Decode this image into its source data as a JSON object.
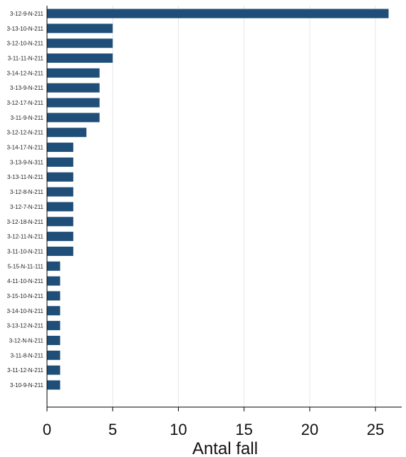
{
  "chart_data": {
    "type": "bar",
    "orientation": "horizontal",
    "categories": [
      "3-12-9-N-211",
      "3-13-10-N-211",
      "3-12-10-N-211",
      "3-11-11-N-211",
      "3-14-12-N-211",
      "3-13-9-N-211",
      "3-12-17-N-211",
      "3-11-9-N-211",
      "3-12-12-N-211",
      "3-14-17-N-211",
      "3-13-9-N-311",
      "3-13-11-N-211",
      "3-12-8-N-211",
      "3-12-7-N-211",
      "3-12-18-N-211",
      "3-12-11-N-211",
      "3-11-10-N-211",
      "5-15-N-11-111",
      "4-11-10-N-211",
      "3-15-10-N-211",
      "3-14-10-N-211",
      "3-13-12-N-211",
      "3-12-N-N-211",
      "3-11-8-N-211",
      "3-11-12-N-211",
      "3-10-9-N-211"
    ],
    "values": [
      26,
      5,
      5,
      5,
      4,
      4,
      4,
      4,
      3,
      2,
      2,
      2,
      2,
      2,
      2,
      2,
      2,
      1,
      1,
      1,
      1,
      1,
      1,
      1,
      1,
      1
    ],
    "xlabel": "Antal fall",
    "x_ticks": [
      0,
      5,
      10,
      15,
      20,
      25
    ],
    "xlim": [
      0,
      27
    ],
    "grid": "vertical",
    "bar_color": "#1f4e79",
    "grid_color": "#e6e6e6"
  }
}
